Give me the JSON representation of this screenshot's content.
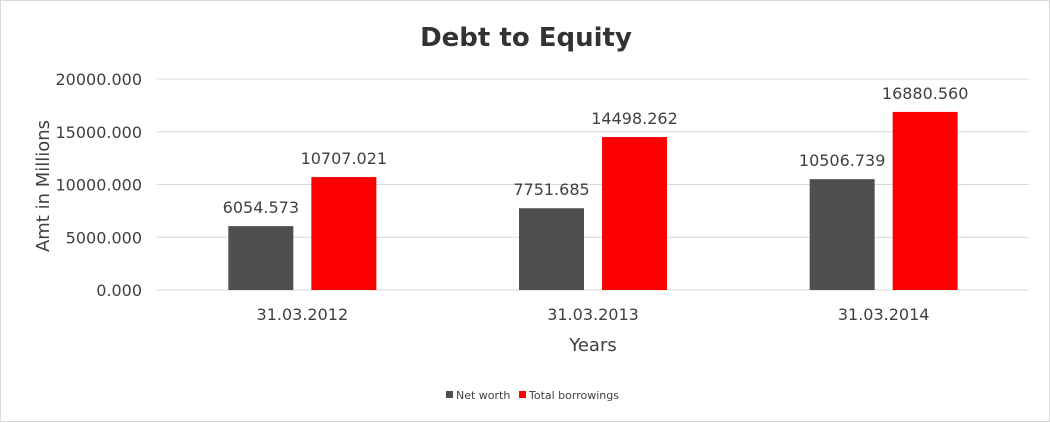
{
  "chart_data": {
    "type": "bar",
    "title": "Debt to Equity",
    "xlabel": "Years",
    "ylabel": "Amt in Millions",
    "categories": [
      "31.03.2012",
      "31.03.2013",
      "31.03.2014"
    ],
    "series": [
      {
        "name": "Net worth",
        "color": "#4f4f4f",
        "values": [
          6054.573,
          7751.685,
          10506.739
        ],
        "labels": [
          "6054.573",
          "7751.685",
          "10506.739"
        ]
      },
      {
        "name": "Total borrowings",
        "color": "#ff0000",
        "values": [
          10707.021,
          14498.262,
          16880.56
        ],
        "labels": [
          "10707.021",
          "14498.262",
          "16880.560"
        ]
      }
    ],
    "ylim": [
      0,
      20000
    ],
    "yticks": [
      0,
      5000,
      10000,
      15000,
      20000
    ],
    "ytick_labels": [
      "0.000",
      "5000.000",
      "10000.000",
      "15000.000",
      "20000.000"
    ],
    "grid": true,
    "legend_position": "bottom"
  }
}
